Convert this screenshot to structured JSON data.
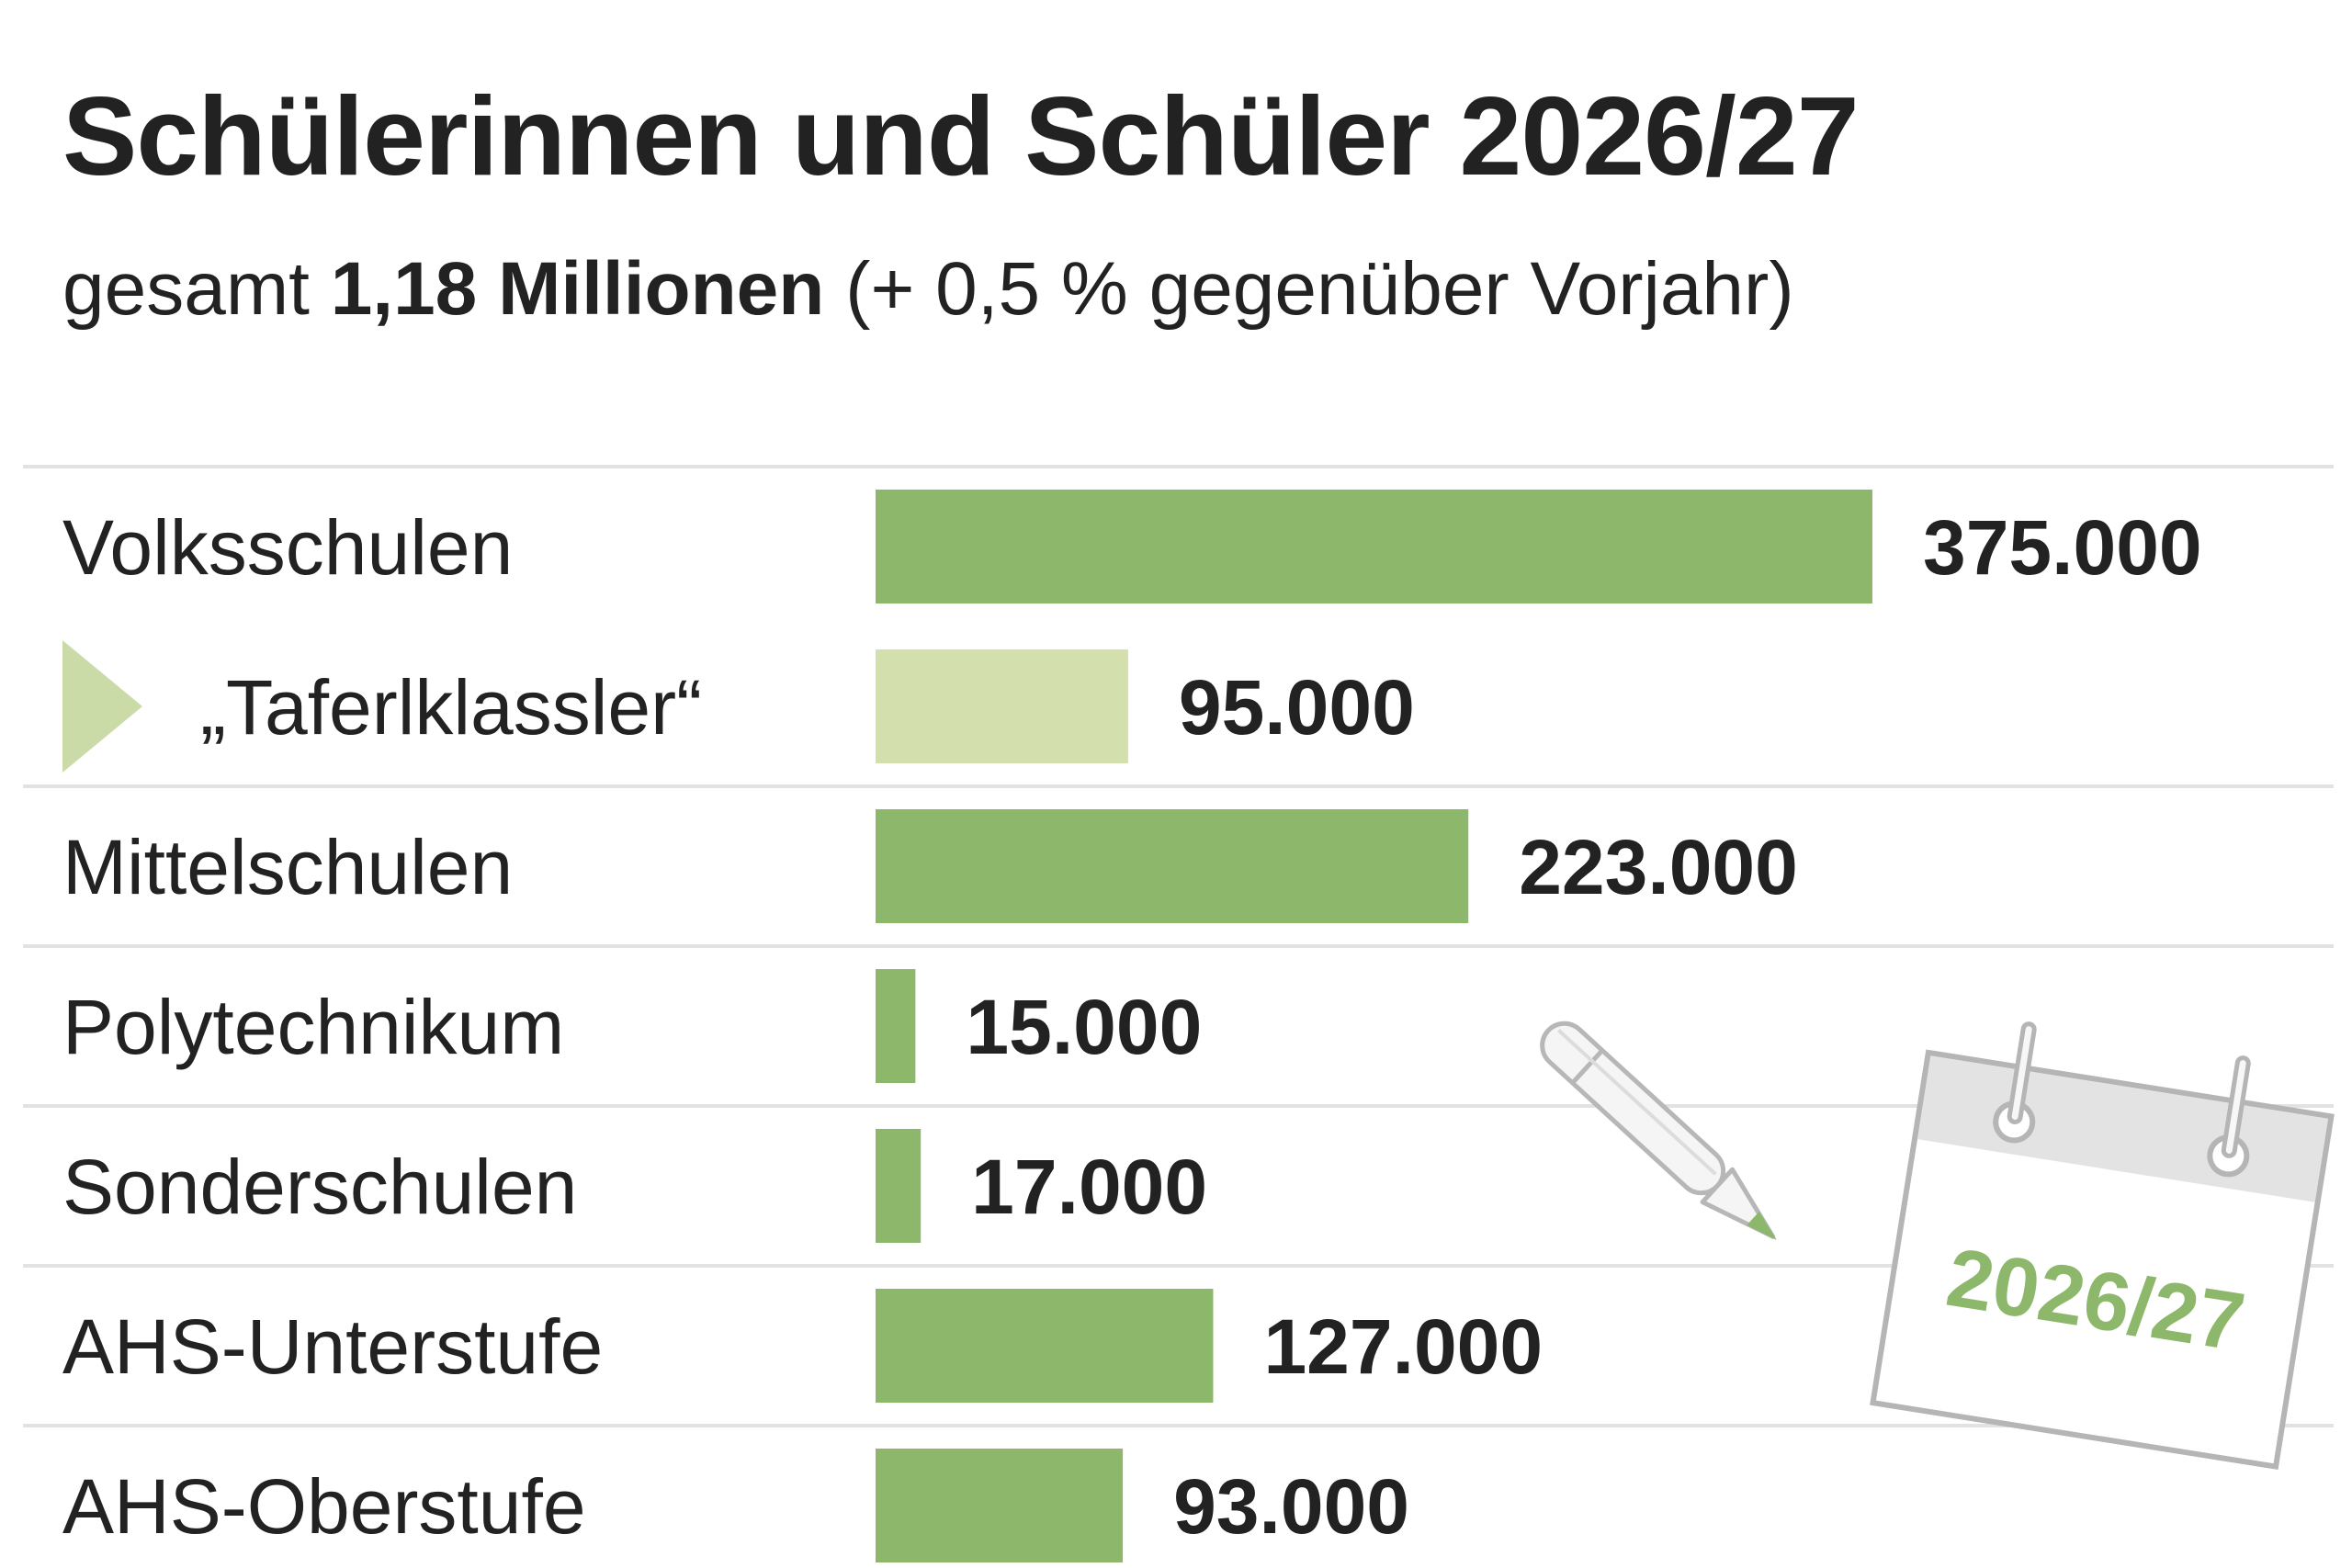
{
  "header": {
    "title": "Schülerinnen und Schüler 2026/27",
    "subtitle_prefix": "gesamt ",
    "subtitle_total": "1,18 Millionen",
    "subtitle_suffix": " (+ 0,5 % gegenüber Vorjahr)"
  },
  "chart_data": {
    "type": "bar",
    "orientation": "horizontal",
    "title": "Schülerinnen und Schüler 2026/27",
    "subtitle": "gesamt 1,18 Millionen (+ 0,5 % gegenüber Vorjahr)",
    "categories": [
      "Volksschulen",
      "„Taferlklassler“",
      "Mittelschulen",
      "Polytechnikum",
      "Sonderschulen",
      "AHS-Unterstufe",
      "AHS-Oberstufe"
    ],
    "values": [
      375000,
      95000,
      223000,
      15000,
      17000,
      127000,
      93000
    ],
    "value_labels": [
      "375.000",
      "95.000",
      "223.000",
      "15.000",
      "17.000",
      "127.000",
      "93.000"
    ],
    "sub_item": [
      false,
      true,
      false,
      false,
      false,
      false,
      false
    ],
    "xlim": [
      0,
      375000
    ],
    "grid": false,
    "colors": {
      "bar": "#8db86b",
      "bar_sub": "#d3e0ad",
      "marker": "#cbdba8",
      "separator": "#e2e2e2"
    }
  },
  "decoration": {
    "calendar_label": "2026/27",
    "icons": [
      "pencil-icon",
      "calendar-icon"
    ],
    "colors": {
      "calendar_text": "#8db86b",
      "pencil_tip": "#8db86b",
      "outline": "#b5b5b5"
    }
  }
}
